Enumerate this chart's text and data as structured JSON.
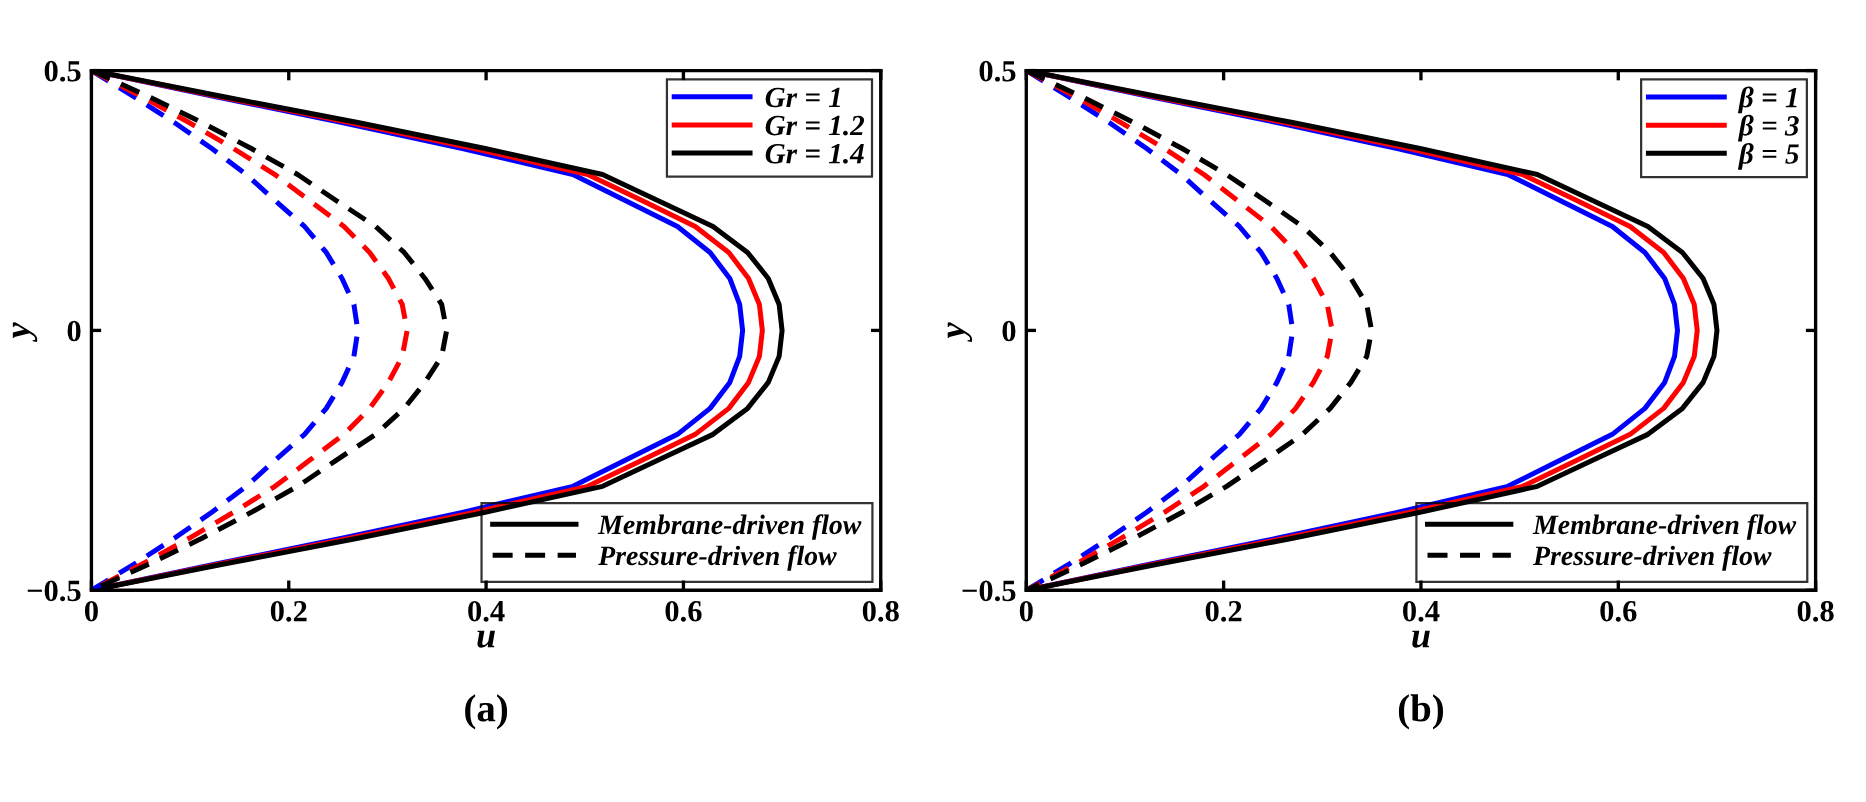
{
  "chart_data": [
    {
      "type": "line",
      "xlabel": "u",
      "ylabel": "y",
      "xlim": [
        0,
        0.8
      ],
      "ylim": [
        -0.5,
        0.5
      ],
      "xticks": [
        0,
        0.2,
        0.4,
        0.6,
        0.8
      ],
      "yticks": [
        {
          "value": -0.5,
          "label": "−0.5"
        },
        0,
        0.5
      ],
      "grid": false,
      "legend": "top right",
      "marker": "none",
      "annotations": [
        "Membrane-driven flow",
        "Pressure-driven flow",
        "(a)"
      ],
      "series": [
        {
          "name": "Gr = 1",
          "color": "#0000ff",
          "line_style": "solid",
          "x": [
            0,
            0.125,
            0.254,
            0.376,
            0.488,
            0.541,
            0.594,
            0.627,
            0.647,
            0.657,
            0.66,
            0.657,
            0.647,
            0.627,
            0.594,
            0.541,
            0.488,
            0.376,
            0.254,
            0.125,
            0
          ],
          "values": [
            0.5,
            0.45,
            0.4,
            0.35,
            0.3,
            0.25,
            0.2,
            0.15,
            0.1,
            0.05,
            0,
            -0.05,
            -0.1,
            -0.15,
            -0.2,
            -0.25,
            -0.3,
            -0.35,
            -0.4,
            -0.45,
            -0.5
          ]
        },
        {
          "name": "Gr = 1.2",
          "color": "#ff0000",
          "line_style": "solid",
          "x": [
            0,
            0.129,
            0.262,
            0.388,
            0.503,
            0.558,
            0.612,
            0.646,
            0.666,
            0.677,
            0.68,
            0.677,
            0.666,
            0.646,
            0.612,
            0.558,
            0.503,
            0.388,
            0.262,
            0.129,
            0
          ],
          "values": [
            0.5,
            0.45,
            0.4,
            0.35,
            0.3,
            0.25,
            0.2,
            0.15,
            0.1,
            0.05,
            0,
            -0.05,
            -0.1,
            -0.15,
            -0.2,
            -0.25,
            -0.3,
            -0.35,
            -0.4,
            -0.45,
            -0.5
          ]
        },
        {
          "name": "Gr = 1.4",
          "color": "#000000",
          "line_style": "solid",
          "x": [
            0,
            0.133,
            0.27,
            0.399,
            0.518,
            0.574,
            0.63,
            0.665,
            0.686,
            0.697,
            0.7,
            0.697,
            0.686,
            0.665,
            0.63,
            0.574,
            0.518,
            0.399,
            0.27,
            0.133,
            0
          ],
          "values": [
            0.5,
            0.45,
            0.4,
            0.35,
            0.3,
            0.25,
            0.2,
            0.15,
            0.1,
            0.05,
            0,
            -0.05,
            -0.1,
            -0.15,
            -0.2,
            -0.25,
            -0.3,
            -0.35,
            -0.4,
            -0.45,
            -0.5
          ]
        },
        {
          "color": "#0000ff",
          "line_style": "dashed",
          "x": [
            0,
            0.043,
            0.084,
            0.122,
            0.157,
            0.186,
            0.216,
            0.238,
            0.254,
            0.266,
            0.27,
            0.266,
            0.254,
            0.238,
            0.216,
            0.186,
            0.157,
            0.122,
            0.084,
            0.043,
            0
          ],
          "values": [
            0.5,
            0.45,
            0.4,
            0.35,
            0.3,
            0.25,
            0.2,
            0.15,
            0.1,
            0.05,
            0,
            -0.05,
            -0.1,
            -0.15,
            -0.2,
            -0.25,
            -0.3,
            -0.35,
            -0.4,
            -0.45,
            -0.5
          ]
        },
        {
          "color": "#ff0000",
          "line_style": "dashed",
          "x": [
            0,
            0.051,
            0.099,
            0.144,
            0.186,
            0.221,
            0.256,
            0.282,
            0.301,
            0.315,
            0.32,
            0.315,
            0.301,
            0.282,
            0.256,
            0.221,
            0.186,
            0.144,
            0.099,
            0.051,
            0
          ],
          "values": [
            0.5,
            0.45,
            0.4,
            0.35,
            0.3,
            0.25,
            0.2,
            0.15,
            0.1,
            0.05,
            0,
            -0.05,
            -0.1,
            -0.15,
            -0.2,
            -0.25,
            -0.3,
            -0.35,
            -0.4,
            -0.45,
            -0.5
          ]
        },
        {
          "color": "#000000",
          "line_style": "dashed",
          "x": [
            0,
            0.058,
            0.112,
            0.162,
            0.209,
            0.248,
            0.288,
            0.317,
            0.338,
            0.355,
            0.36,
            0.355,
            0.338,
            0.317,
            0.288,
            0.248,
            0.209,
            0.162,
            0.112,
            0.058,
            0
          ],
          "values": [
            0.5,
            0.45,
            0.4,
            0.35,
            0.3,
            0.25,
            0.2,
            0.15,
            0.1,
            0.05,
            0,
            -0.05,
            -0.1,
            -0.15,
            -0.2,
            -0.25,
            -0.3,
            -0.35,
            -0.4,
            -0.45,
            -0.5
          ]
        }
      ]
    },
    {
      "type": "line",
      "xlabel": "u",
      "ylabel": "y",
      "xlim": [
        0,
        0.8
      ],
      "ylim": [
        -0.5,
        0.5
      ],
      "xticks": [
        0,
        0.2,
        0.4,
        0.6,
        0.8
      ],
      "yticks": [
        {
          "value": -0.5,
          "label": "−0.5"
        },
        0,
        0.5
      ],
      "grid": false,
      "legend": "top right",
      "marker": "none",
      "annotations": [
        "Membrane-driven flow",
        "Pressure-driven flow",
        "(b)"
      ],
      "series": [
        {
          "name": "β = 1",
          "color": "#0000ff",
          "line_style": "solid",
          "x": [
            0,
            0.125,
            0.254,
            0.376,
            0.488,
            0.541,
            0.594,
            0.627,
            0.647,
            0.657,
            0.66,
            0.657,
            0.647,
            0.627,
            0.594,
            0.541,
            0.488,
            0.376,
            0.254,
            0.125,
            0
          ],
          "values": [
            0.5,
            0.45,
            0.4,
            0.35,
            0.3,
            0.25,
            0.2,
            0.15,
            0.1,
            0.05,
            0,
            -0.05,
            -0.1,
            -0.15,
            -0.2,
            -0.25,
            -0.3,
            -0.35,
            -0.4,
            -0.45,
            -0.5
          ]
        },
        {
          "name": "β = 3",
          "color": "#ff0000",
          "line_style": "solid",
          "x": [
            0,
            0.129,
            0.262,
            0.388,
            0.503,
            0.558,
            0.612,
            0.646,
            0.666,
            0.677,
            0.68,
            0.677,
            0.666,
            0.646,
            0.612,
            0.558,
            0.503,
            0.388,
            0.262,
            0.129,
            0
          ],
          "values": [
            0.5,
            0.45,
            0.4,
            0.35,
            0.3,
            0.25,
            0.2,
            0.15,
            0.1,
            0.05,
            0,
            -0.05,
            -0.1,
            -0.15,
            -0.2,
            -0.25,
            -0.3,
            -0.35,
            -0.4,
            -0.45,
            -0.5
          ]
        },
        {
          "name": "β = 5",
          "color": "#000000",
          "line_style": "solid",
          "x": [
            0,
            0.133,
            0.27,
            0.399,
            0.518,
            0.574,
            0.63,
            0.665,
            0.686,
            0.697,
            0.7,
            0.697,
            0.686,
            0.665,
            0.63,
            0.574,
            0.518,
            0.399,
            0.27,
            0.133,
            0
          ],
          "values": [
            0.5,
            0.45,
            0.4,
            0.35,
            0.3,
            0.25,
            0.2,
            0.15,
            0.1,
            0.05,
            0,
            -0.05,
            -0.1,
            -0.15,
            -0.2,
            -0.25,
            -0.3,
            -0.35,
            -0.4,
            -0.45,
            -0.5
          ]
        },
        {
          "color": "#0000ff",
          "line_style": "dashed",
          "x": [
            0,
            0.043,
            0.084,
            0.122,
            0.157,
            0.186,
            0.216,
            0.238,
            0.254,
            0.266,
            0.27,
            0.266,
            0.254,
            0.238,
            0.216,
            0.186,
            0.157,
            0.122,
            0.084,
            0.043,
            0
          ],
          "values": [
            0.5,
            0.45,
            0.4,
            0.35,
            0.3,
            0.25,
            0.2,
            0.15,
            0.1,
            0.05,
            0,
            -0.05,
            -0.1,
            -0.15,
            -0.2,
            -0.25,
            -0.3,
            -0.35,
            -0.4,
            -0.45,
            -0.5
          ]
        },
        {
          "color": "#ff0000",
          "line_style": "dashed",
          "x": [
            0,
            0.05,
            0.096,
            0.14,
            0.18,
            0.214,
            0.248,
            0.273,
            0.291,
            0.305,
            0.31,
            0.305,
            0.291,
            0.273,
            0.248,
            0.214,
            0.18,
            0.14,
            0.096,
            0.05,
            0
          ],
          "values": [
            0.5,
            0.45,
            0.4,
            0.35,
            0.3,
            0.25,
            0.2,
            0.15,
            0.1,
            0.05,
            0,
            -0.05,
            -0.1,
            -0.15,
            -0.2,
            -0.25,
            -0.3,
            -0.35,
            -0.4,
            -0.45,
            -0.5
          ]
        },
        {
          "color": "#000000",
          "line_style": "dashed",
          "x": [
            0,
            0.056,
            0.109,
            0.158,
            0.203,
            0.242,
            0.28,
            0.308,
            0.329,
            0.345,
            0.35,
            0.345,
            0.329,
            0.308,
            0.28,
            0.242,
            0.203,
            0.158,
            0.109,
            0.056,
            0
          ],
          "values": [
            0.5,
            0.45,
            0.4,
            0.35,
            0.3,
            0.25,
            0.2,
            0.15,
            0.1,
            0.05,
            0,
            -0.05,
            -0.1,
            -0.15,
            -0.2,
            -0.25,
            -0.3,
            -0.35,
            -0.4,
            -0.45,
            -0.5
          ]
        }
      ]
    }
  ]
}
